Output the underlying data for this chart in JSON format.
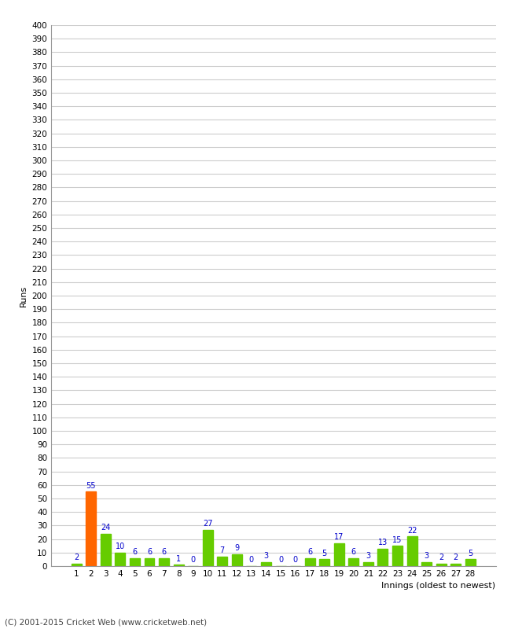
{
  "xlabel": "Innings (oldest to newest)",
  "ylabel": "Runs",
  "values": [
    2,
    55,
    24,
    10,
    6,
    6,
    6,
    1,
    0,
    27,
    7,
    9,
    0,
    3,
    0,
    0,
    6,
    5,
    17,
    6,
    3,
    13,
    15,
    22,
    3,
    2,
    2,
    5
  ],
  "categories": [
    "1",
    "2",
    "3",
    "4",
    "5",
    "6",
    "7",
    "8",
    "9",
    "10",
    "11",
    "12",
    "13",
    "14",
    "15",
    "16",
    "17",
    "18",
    "19",
    "20",
    "21",
    "22",
    "23",
    "24",
    "25",
    "26",
    "27",
    "28"
  ],
  "bar_colors": [
    "#66cc00",
    "#ff6600",
    "#66cc00",
    "#66cc00",
    "#66cc00",
    "#66cc00",
    "#66cc00",
    "#66cc00",
    "#66cc00",
    "#66cc00",
    "#66cc00",
    "#66cc00",
    "#66cc00",
    "#66cc00",
    "#66cc00",
    "#66cc00",
    "#66cc00",
    "#66cc00",
    "#66cc00",
    "#66cc00",
    "#66cc00",
    "#66cc00",
    "#66cc00",
    "#66cc00",
    "#66cc00",
    "#66cc00",
    "#66cc00",
    "#66cc00"
  ],
  "ylim": [
    0,
    400
  ],
  "ytick_step": 10,
  "label_color": "#0000cc",
  "background_color": "#ffffff",
  "grid_color": "#cccccc",
  "footer": "(C) 2001-2015 Cricket Web (www.cricketweb.net)"
}
